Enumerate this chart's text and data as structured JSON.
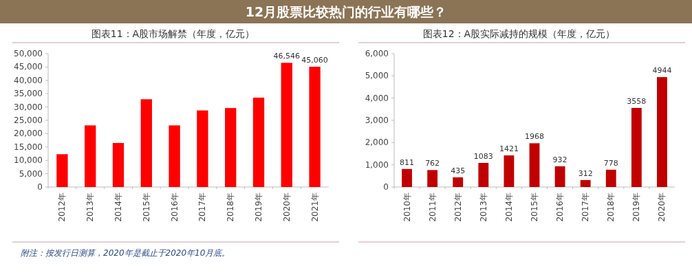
{
  "chart_data": [
    {
      "type": "other",
      "title": "12月股票比较热门的行业有哪些？"
    },
    {
      "type": "bar",
      "title": "图表11：A股市场解禁（年度，亿元）",
      "categories": [
        "2012年",
        "2013年",
        "2014年",
        "2015年",
        "2016年",
        "2017年",
        "2018年",
        "2019年",
        "2020年",
        "2021年"
      ],
      "values": [
        12300,
        23100,
        16500,
        32900,
        23100,
        28700,
        29600,
        33500,
        46546,
        45060
      ],
      "value_labels": [
        null,
        null,
        null,
        null,
        null,
        null,
        null,
        null,
        "46,546",
        "45,060"
      ],
      "color": "#ff0000",
      "ylim": [
        0,
        50000
      ],
      "yticks": [
        0,
        {
          "value": 5000,
          "label": "5,000"
        },
        {
          "value": 10000,
          "label": "10,000"
        },
        {
          "value": 15000,
          "label": "15,000"
        },
        {
          "value": 20000,
          "label": "20,000"
        },
        {
          "value": 25000,
          "label": "25,000"
        },
        {
          "value": 30000,
          "label": "30,000"
        },
        {
          "value": 35000,
          "label": "35,000"
        },
        {
          "value": 40000,
          "label": "40,000"
        },
        {
          "value": 45000,
          "label": "45,000"
        },
        {
          "value": 50000,
          "label": "50,000"
        }
      ],
      "annotations": [
        "附注：按发行日测算，2020年是截止于2020年10月底。"
      ]
    },
    {
      "type": "bar",
      "title": "图表12：A股实际减持的规模（年度，亿元）",
      "categories": [
        "2010年",
        "2011年",
        "2012年",
        "2013年",
        "2014年",
        "2015年",
        "2016年",
        "2017年",
        "2018年",
        "2019年",
        "2020年"
      ],
      "values": [
        811,
        762,
        435,
        1083,
        1421,
        1968,
        932,
        312,
        778,
        3558,
        4944
      ],
      "data_labels": true,
      "color": "#c00000",
      "ylim": [
        0,
        6000
      ],
      "yticks": [
        0,
        {
          "value": 1000,
          "label": "1,000"
        },
        {
          "value": 2000,
          "label": "2,000"
        },
        {
          "value": 3000,
          "label": "3,000"
        },
        {
          "value": 4000,
          "label": "4,000"
        },
        {
          "value": 5000,
          "label": "5,000"
        },
        {
          "value": 6000,
          "label": "6,000"
        }
      ]
    }
  ]
}
